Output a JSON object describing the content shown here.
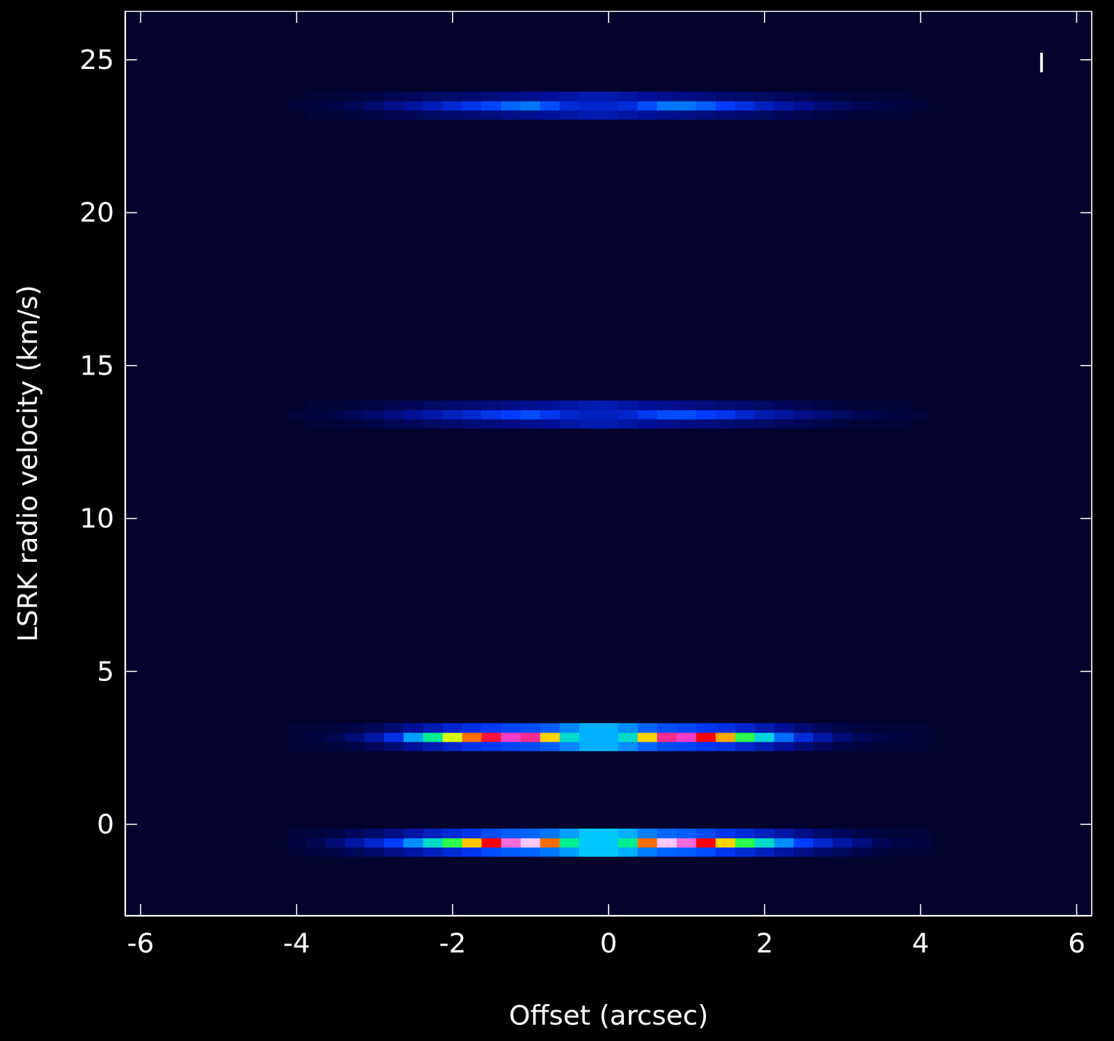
{
  "chart_data": {
    "type": "heatmap",
    "x_label": "Offset (arcsec)",
    "y_label": "LSRK radio velocity (km/s)",
    "xlim": [
      -6.2,
      6.2
    ],
    "ylim": [
      -3,
      26.6
    ],
    "xticks": [
      -6,
      -4,
      -2,
      0,
      2,
      4,
      6
    ],
    "yticks": [
      0,
      5,
      10,
      15,
      20,
      25
    ],
    "zlim": [
      0,
      1
    ],
    "annotations": [
      {
        "text": "I",
        "x": 5.55,
        "y": 24.9
      }
    ],
    "x": [
      -4,
      -3.75,
      -3.5,
      -3.25,
      -3,
      -2.75,
      -2.5,
      -2.25,
      -2,
      -1.75,
      -1.5,
      -1.25,
      -1,
      -0.75,
      -0.5,
      -0.25,
      0,
      0.25,
      0.5,
      0.75,
      1,
      1.25,
      1.5,
      1.75,
      2,
      2.25,
      2.5,
      2.75,
      3,
      3.25,
      3.5,
      3.75,
      4
    ],
    "y": [
      -0.9,
      -0.6,
      -0.3,
      2.55,
      2.85,
      3.15,
      13.1,
      13.4,
      13.7,
      23.2,
      23.5,
      23.8
    ],
    "z": [
      [
        0.01,
        0.02,
        0.03,
        0.05,
        0.07,
        0.1,
        0.14,
        0.18,
        0.22,
        0.26,
        0.3,
        0.32,
        0.33,
        0.35,
        0.4,
        0.45,
        0.45,
        0.42,
        0.36,
        0.33,
        0.32,
        0.3,
        0.26,
        0.22,
        0.18,
        0.14,
        0.1,
        0.07,
        0.05,
        0.03,
        0.02,
        0.01,
        0.01
      ],
      [
        0.02,
        0.04,
        0.08,
        0.14,
        0.2,
        0.28,
        0.38,
        0.5,
        0.62,
        0.76,
        0.9,
        0.98,
        1.0,
        0.82,
        0.55,
        0.45,
        0.45,
        0.55,
        0.82,
        1.0,
        0.98,
        0.9,
        0.75,
        0.62,
        0.5,
        0.38,
        0.28,
        0.2,
        0.14,
        0.09,
        0.05,
        0.03,
        0.02
      ],
      [
        0.01,
        0.02,
        0.03,
        0.05,
        0.07,
        0.1,
        0.14,
        0.18,
        0.22,
        0.26,
        0.3,
        0.32,
        0.33,
        0.35,
        0.4,
        0.45,
        0.45,
        0.42,
        0.36,
        0.33,
        0.32,
        0.3,
        0.26,
        0.22,
        0.18,
        0.14,
        0.1,
        0.07,
        0.05,
        0.03,
        0.02,
        0.01,
        0.01
      ],
      [
        0.01,
        0.01,
        0.02,
        0.03,
        0.05,
        0.08,
        0.12,
        0.16,
        0.2,
        0.24,
        0.27,
        0.29,
        0.3,
        0.32,
        0.37,
        0.42,
        0.42,
        0.38,
        0.33,
        0.3,
        0.29,
        0.27,
        0.24,
        0.2,
        0.16,
        0.12,
        0.08,
        0.05,
        0.03,
        0.02,
        0.01,
        0.01,
        0.01
      ],
      [
        0.01,
        0.02,
        0.04,
        0.08,
        0.14,
        0.24,
        0.4,
        0.55,
        0.7,
        0.82,
        0.92,
        0.97,
        0.95,
        0.75,
        0.5,
        0.42,
        0.42,
        0.5,
        0.75,
        0.95,
        0.97,
        0.9,
        0.78,
        0.62,
        0.48,
        0.34,
        0.22,
        0.14,
        0.08,
        0.05,
        0.03,
        0.02,
        0.01
      ],
      [
        0.01,
        0.01,
        0.02,
        0.03,
        0.05,
        0.08,
        0.12,
        0.16,
        0.2,
        0.24,
        0.27,
        0.29,
        0.3,
        0.32,
        0.37,
        0.42,
        0.42,
        0.38,
        0.33,
        0.3,
        0.29,
        0.27,
        0.24,
        0.2,
        0.16,
        0.12,
        0.08,
        0.05,
        0.03,
        0.02,
        0.01,
        0.01,
        0.01
      ],
      [
        0,
        0.01,
        0.01,
        0.02,
        0.03,
        0.04,
        0.05,
        0.06,
        0.07,
        0.08,
        0.09,
        0.1,
        0.11,
        0.12,
        0.14,
        0.16,
        0.16,
        0.14,
        0.12,
        0.11,
        0.1,
        0.09,
        0.08,
        0.07,
        0.06,
        0.05,
        0.04,
        0.03,
        0.02,
        0.01,
        0.01,
        0.01,
        0
      ],
      [
        0.01,
        0.02,
        0.03,
        0.05,
        0.07,
        0.09,
        0.12,
        0.15,
        0.18,
        0.21,
        0.25,
        0.28,
        0.3,
        0.26,
        0.2,
        0.18,
        0.18,
        0.2,
        0.26,
        0.3,
        0.3,
        0.28,
        0.25,
        0.2,
        0.16,
        0.13,
        0.1,
        0.08,
        0.06,
        0.04,
        0.03,
        0.02,
        0.01
      ],
      [
        0,
        0.01,
        0.01,
        0.02,
        0.03,
        0.04,
        0.05,
        0.06,
        0.07,
        0.08,
        0.09,
        0.1,
        0.11,
        0.12,
        0.14,
        0.16,
        0.16,
        0.14,
        0.12,
        0.11,
        0.1,
        0.09,
        0.08,
        0.07,
        0.06,
        0.05,
        0.04,
        0.03,
        0.02,
        0.01,
        0.01,
        0.01,
        0
      ],
      [
        0,
        0.01,
        0.01,
        0.02,
        0.03,
        0.04,
        0.05,
        0.06,
        0.07,
        0.08,
        0.09,
        0.1,
        0.11,
        0.12,
        0.14,
        0.16,
        0.16,
        0.14,
        0.12,
        0.11,
        0.1,
        0.09,
        0.08,
        0.07,
        0.06,
        0.05,
        0.04,
        0.03,
        0.02,
        0.01,
        0.01,
        0.01,
        0
      ],
      [
        0.01,
        0.02,
        0.03,
        0.05,
        0.07,
        0.1,
        0.13,
        0.17,
        0.21,
        0.25,
        0.29,
        0.33,
        0.35,
        0.3,
        0.22,
        0.2,
        0.2,
        0.22,
        0.3,
        0.35,
        0.35,
        0.32,
        0.28,
        0.23,
        0.18,
        0.14,
        0.11,
        0.08,
        0.06,
        0.04,
        0.03,
        0.02,
        0.01
      ],
      [
        0,
        0.01,
        0.01,
        0.02,
        0.03,
        0.04,
        0.05,
        0.06,
        0.07,
        0.08,
        0.09,
        0.1,
        0.11,
        0.12,
        0.14,
        0.16,
        0.16,
        0.14,
        0.12,
        0.11,
        0.1,
        0.09,
        0.08,
        0.07,
        0.06,
        0.05,
        0.04,
        0.03,
        0.02,
        0.01,
        0.01,
        0.01,
        0
      ]
    ]
  }
}
